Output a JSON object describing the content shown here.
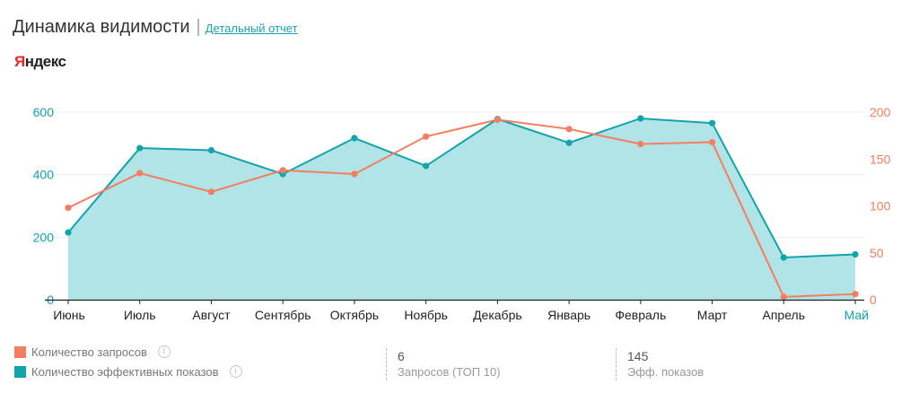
{
  "header": {
    "title": "Динамика видимости",
    "separator": "|",
    "report_link": "Детальный отчет"
  },
  "engine": {
    "first_letter": "Я",
    "rest": "ндекс"
  },
  "colors": {
    "teal": "#12a3ab",
    "teal_fill": "#b1e4e6",
    "orange": "#f57d61",
    "grid": "#ececec"
  },
  "chart_data": {
    "type": "line",
    "categories": [
      "Июнь",
      "Июль",
      "Август",
      "Сентябрь",
      "Октябрь",
      "Ноябрь",
      "Декабрь",
      "Январь",
      "Февраль",
      "Март",
      "Апрель",
      "Май"
    ],
    "highlight_category": "Май",
    "series": [
      {
        "name": "Количество эффективных показов",
        "axis": "left",
        "type": "area",
        "color": "#12a3ab",
        "values": [
          215,
          485,
          478,
          402,
          517,
          428,
          578,
          502,
          580,
          565,
          135,
          145
        ]
      },
      {
        "name": "Количество запросов",
        "axis": "right",
        "type": "line",
        "color": "#f57d61",
        "values": [
          98,
          135,
          115,
          138,
          134,
          174,
          192,
          182,
          166,
          168,
          3,
          6
        ]
      }
    ],
    "y_left": {
      "min": 0,
      "max": 600,
      "ticks": [
        "0",
        "200",
        "400",
        "600"
      ]
    },
    "y_right": {
      "min": 0,
      "max": 200,
      "ticks": [
        "0",
        "50",
        "100",
        "150",
        "200"
      ]
    },
    "grid": true,
    "legend": "bottom-left"
  },
  "legend": [
    {
      "label": "Количество запросов",
      "color": "#f57d61"
    },
    {
      "label": "Количество эффективных показов",
      "color": "#12a3ab"
    }
  ],
  "info_glyph": "i",
  "stats": [
    {
      "value": "6",
      "label": "Запросов (ТОП 10)"
    },
    {
      "value": "145",
      "label": "Эфф. показов"
    }
  ]
}
